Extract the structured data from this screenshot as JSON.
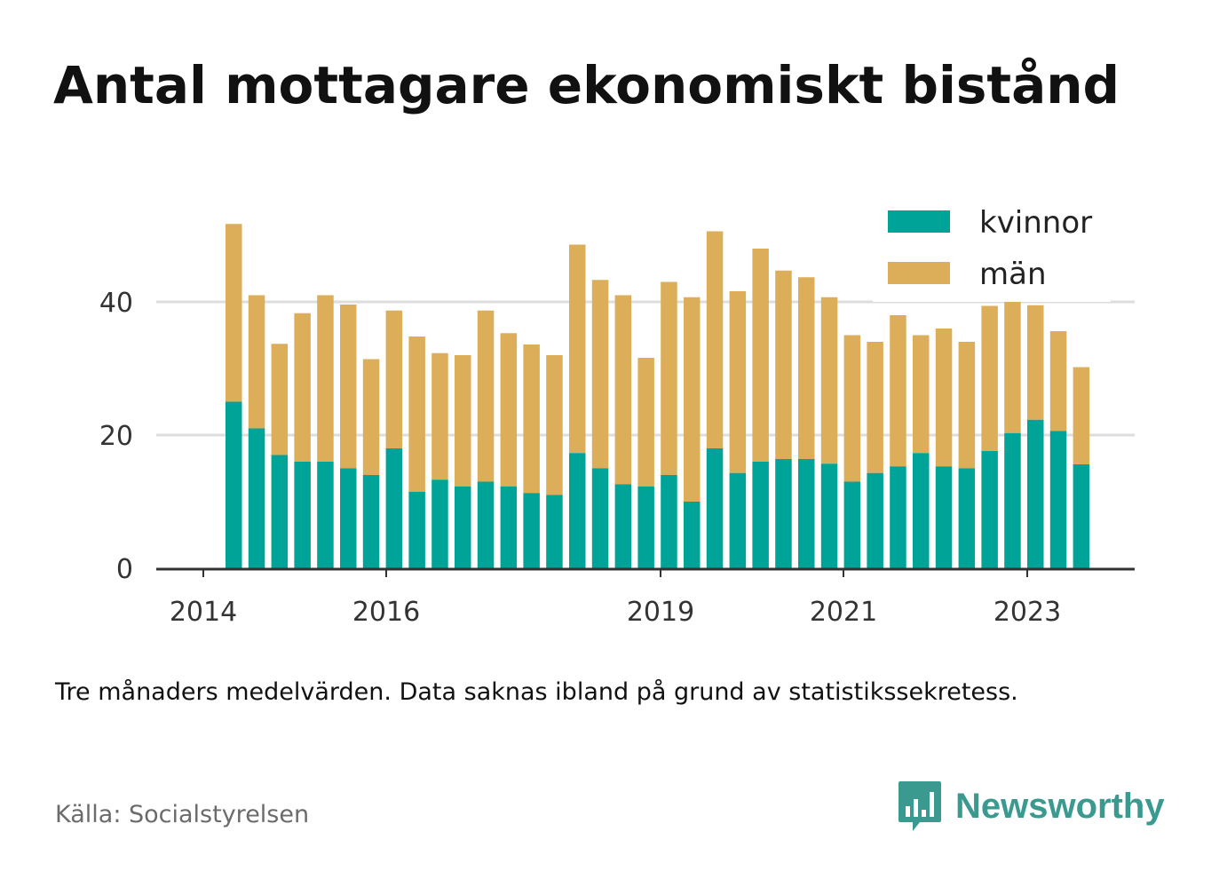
{
  "title": "Antal mottagare ekonomiskt bistånd",
  "subtitle": "Tre månaders medelvärden. Data saknas ibland på grund av statistikssekretess.",
  "source": "Källa: Socialstyrelsen",
  "brand": {
    "name": "Newsworthy",
    "logo_icon": "bar-chart-speech-bubble-icon",
    "color": "#3a9a90"
  },
  "colors": {
    "kvinnor": "#00a398",
    "man": "#dcae5a",
    "grid": "#dddddd",
    "axis": "#333333"
  },
  "chart_data": {
    "type": "bar",
    "stacked": true,
    "x_tick_labels": [
      "2014",
      "2016",
      "2019",
      "2021",
      "2023"
    ],
    "y_ticks": [
      0,
      20,
      40
    ],
    "ylim": [
      0,
      53
    ],
    "grid": "horizontal",
    "legend_position": "top-right",
    "series": [
      {
        "name": "kvinnor",
        "color": "#00a398",
        "values": [
          25,
          21,
          17,
          16,
          16,
          15,
          14,
          18,
          11.5,
          13.3,
          12.3,
          13,
          12.3,
          11.3,
          11,
          17.3,
          15,
          12.6,
          12.3,
          14,
          10,
          18,
          14.3,
          16,
          16.4,
          16.4,
          15.7,
          13,
          14.3,
          15.3,
          17.3,
          15.3,
          15,
          17.6,
          20.3,
          22.3,
          20.6,
          15.6
        ]
      },
      {
        "name": "män",
        "color": "#dcae5a",
        "values": [
          26.7,
          20,
          16.7,
          22.3,
          25,
          24.6,
          17.4,
          20.7,
          23.3,
          19,
          19.7,
          25.7,
          23,
          22.3,
          21,
          31.3,
          28.3,
          28.4,
          19.3,
          29,
          30.7,
          32.6,
          27.3,
          32,
          28.3,
          27.3,
          25,
          22,
          19.7,
          22.7,
          17.7,
          20.7,
          19,
          21.8,
          19.7,
          17.2,
          15,
          14.6
        ]
      }
    ]
  }
}
